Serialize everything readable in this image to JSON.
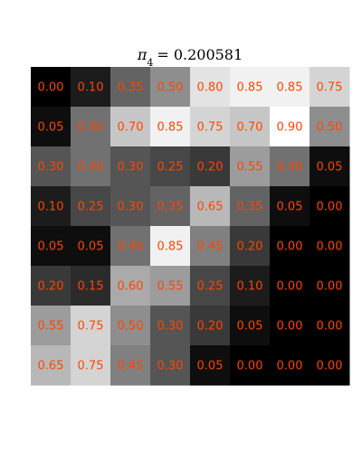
{
  "chart_data": {
    "type": "heatmap",
    "title_symbol": "π",
    "title_subscript": "4",
    "title_value": "= 0.200581",
    "colormap": "gray",
    "vmin": 0.0,
    "vmax": 0.9,
    "label_color": "#ff4500",
    "rows": 8,
    "cols": 8,
    "values": [
      [
        0.0,
        0.1,
        0.35,
        0.5,
        0.8,
        0.85,
        0.85,
        0.75
      ],
      [
        0.05,
        0.4,
        0.7,
        0.85,
        0.75,
        0.7,
        0.9,
        0.5
      ],
      [
        0.3,
        0.4,
        0.3,
        0.25,
        0.2,
        0.55,
        0.4,
        0.05
      ],
      [
        0.1,
        0.25,
        0.3,
        0.35,
        0.65,
        0.35,
        0.05,
        0.0
      ],
      [
        0.05,
        0.05,
        0.4,
        0.85,
        0.45,
        0.2,
        0.0,
        0.0
      ],
      [
        0.2,
        0.15,
        0.6,
        0.55,
        0.25,
        0.1,
        0.0,
        0.0
      ],
      [
        0.55,
        0.75,
        0.5,
        0.3,
        0.2,
        0.05,
        0.0,
        0.0
      ],
      [
        0.65,
        0.75,
        0.45,
        0.3,
        0.05,
        0.0,
        0.0,
        0.0
      ]
    ],
    "labels": [
      [
        "0.00",
        "0.10",
        "0.35",
        "0.50",
        "0.80",
        "0.85",
        "0.85",
        "0.75"
      ],
      [
        "0.05",
        "0.40",
        "0.70",
        "0.85",
        "0.75",
        "0.70",
        "0.90",
        "0.50"
      ],
      [
        "0.30",
        "0.40",
        "0.30",
        "0.25",
        "0.20",
        "0.55",
        "0.40",
        "0.05"
      ],
      [
        "0.10",
        "0.25",
        "0.30",
        "0.35",
        "0.65",
        "0.35",
        "0.05",
        "0.00"
      ],
      [
        "0.05",
        "0.05",
        "0.40",
        "0.85",
        "0.45",
        "0.20",
        "0.00",
        "0.00"
      ],
      [
        "0.20",
        "0.15",
        "0.60",
        "0.55",
        "0.25",
        "0.10",
        "0.00",
        "0.00"
      ],
      [
        "0.55",
        "0.75",
        "0.50",
        "0.30",
        "0.20",
        "0.05",
        "0.00",
        "0.00"
      ],
      [
        "0.65",
        "0.75",
        "0.45",
        "0.30",
        "0.05",
        "0.00",
        "0.00",
        "0.00"
      ]
    ]
  }
}
